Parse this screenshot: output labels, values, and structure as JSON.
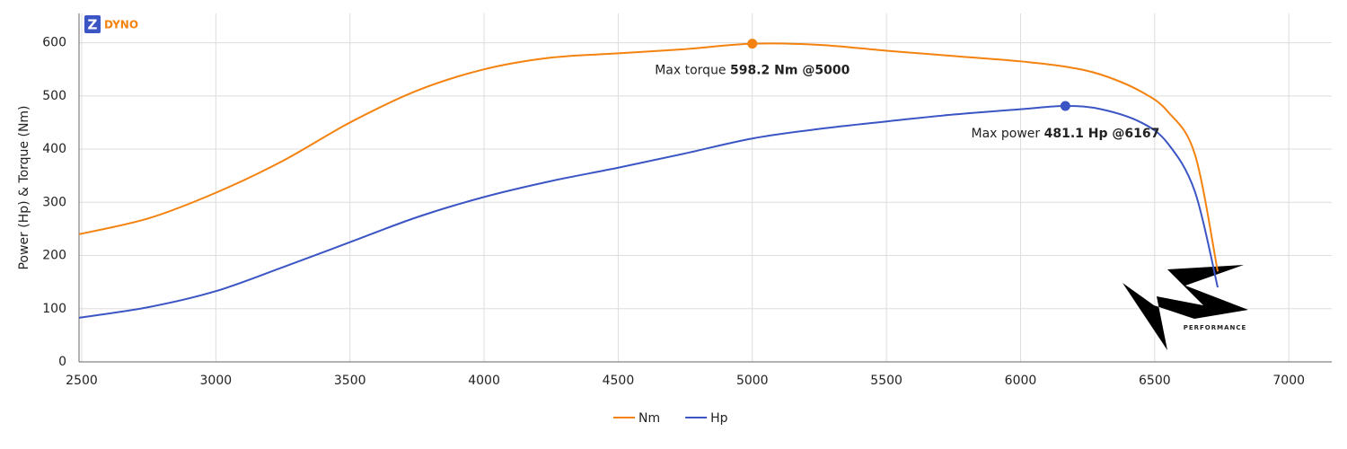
{
  "chart_data": {
    "type": "line",
    "brand": "DYNO",
    "logo_text": "PERFORMANCE",
    "ylabel": "Power (Hp) & Torque (Nm)",
    "x": [
      2490,
      2750,
      3000,
      3250,
      3500,
      3750,
      4000,
      4250,
      4500,
      4750,
      5000,
      5250,
      5500,
      5750,
      6000,
      6167,
      6300,
      6450,
      6550,
      6650,
      6735
    ],
    "series": [
      {
        "name": "Nm",
        "color": "#f4820f",
        "values": [
          240,
          270,
          318,
          378,
          450,
          510,
          550,
          572,
          580,
          588,
          598.2,
          596,
          585,
          575,
          565,
          555,
          540,
          508,
          470,
          390,
          170
        ],
        "annotation": {
          "label": "Max torque",
          "value_label": "598.2 Nm @5000"
        }
      },
      {
        "name": "Hp",
        "color": "#3b55c4",
        "values": [
          83,
          103,
          133,
          178,
          225,
          272,
          310,
          340,
          365,
          392,
          420,
          438,
          452,
          465,
          475,
          481.1,
          475,
          450,
          410,
          320,
          140
        ],
        "annotation": {
          "label": "Max power",
          "value_label": "481.1 Hp @6167"
        }
      }
    ],
    "xlim": [
      2490,
      7160
    ],
    "ylim": [
      0,
      655
    ],
    "xticks": [
      2500,
      3000,
      3500,
      4000,
      4500,
      5000,
      5500,
      6000,
      6500,
      7000
    ],
    "yticks": [
      0,
      100,
      200,
      300,
      400,
      500,
      600
    ],
    "grid": true,
    "legend": "bottom"
  }
}
